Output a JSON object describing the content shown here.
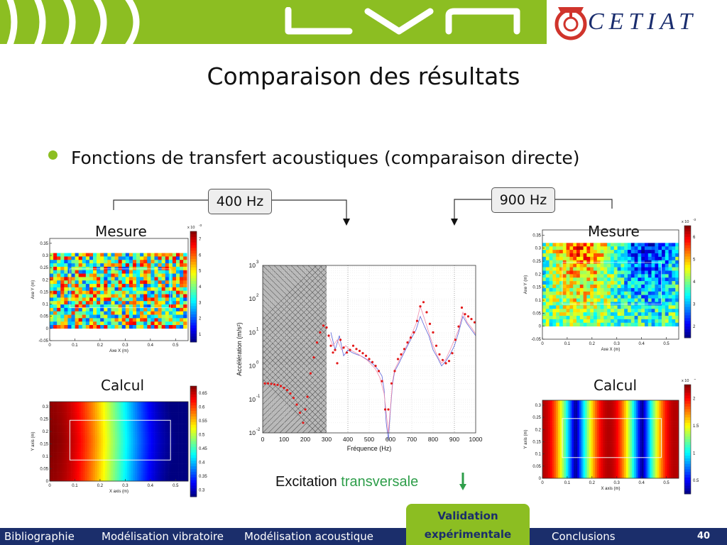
{
  "header": {
    "logo_text": "LVA",
    "partner": "CETIAT"
  },
  "slide": {
    "title": "Comparaison des résultats",
    "bullet": "Fonctions de transfert acoustiques (comparaison directe)",
    "tag_400": "400 Hz",
    "tag_900": "900 Hz",
    "caption_prefix": "Excitation ",
    "caption_highlight": "transversale"
  },
  "panels": {
    "left_measure_label": "Mesure",
    "left_calc_label": "Calcul",
    "right_measure_label": "Mesure",
    "right_calc_label": "Calcul"
  },
  "footer": {
    "items": [
      "Bibliographie",
      "Modélisation vibratoire",
      "Modélisation acoustique",
      "Validation expérimentale",
      "Conclusions"
    ],
    "active_line1": "Validation",
    "active_line2": "expérimentale",
    "page": "40"
  },
  "colors": {
    "brand_green": "#8cbe22",
    "brand_navy": "#1b2e6b",
    "cetiat_red": "#d0342c",
    "caption_green": "#2e9e4a"
  },
  "chart_data": [
    {
      "id": "left-measure",
      "type": "heatmap",
      "pattern": "noise",
      "xlabel": "Axe X (m)",
      "ylabel": "Axe Y (m)",
      "xticks": [
        "0",
        "0.1",
        "0.2",
        "0.3",
        "0.4",
        "0.5"
      ],
      "yticks": [
        "-0.05",
        "0",
        "0.05",
        "0.1",
        "0.15",
        "0.2",
        "0.25",
        "0.3",
        "0.35"
      ],
      "xlim": [
        0,
        0.55
      ],
      "ylim": [
        -0.05,
        0.37
      ],
      "colorbar_exponent": "x 10",
      "colorbar_exponent_sup": "-3",
      "colorbar_ticks": [
        "1",
        "2",
        "3",
        "4",
        "5",
        "6",
        "7"
      ]
    },
    {
      "id": "left-calcul",
      "type": "heatmap",
      "pattern": "cosine-400",
      "xlabel": "X axis (m)",
      "ylabel": "Y axis (m)",
      "xticks": [
        "0",
        "0.1",
        "0.2",
        "0.3",
        "0.4",
        "0.5"
      ],
      "yticks": [
        "0",
        "0.05",
        "0.1",
        "0.15",
        "0.2",
        "0.25",
        "0.3"
      ],
      "xlim": [
        0,
        0.55
      ],
      "ylim": [
        0,
        0.32
      ],
      "colorbar_exponent": "",
      "colorbar_exponent_sup": "",
      "colorbar_ticks": [
        "0.3",
        "0.35",
        "0.4",
        "0.45",
        "0.5",
        "0.55",
        "0.6",
        "0.65"
      ]
    },
    {
      "id": "right-measure",
      "type": "heatmap",
      "pattern": "noise-900",
      "xlabel": "Axe X (m)",
      "ylabel": "Axe Y (m)",
      "xticks": [
        "0",
        "0.1",
        "0.2",
        "0.3",
        "0.4",
        "0.5"
      ],
      "yticks": [
        "-0.05",
        "0",
        "0.05",
        "0.1",
        "0.15",
        "0.2",
        "0.25",
        "0.3",
        "0.35"
      ],
      "xlim": [
        0,
        0.55
      ],
      "ylim": [
        -0.05,
        0.37
      ],
      "colorbar_exponent": "x 10",
      "colorbar_exponent_sup": "-3",
      "colorbar_ticks": [
        "2",
        "3",
        "4",
        "5",
        "6"
      ]
    },
    {
      "id": "right-calcul",
      "type": "heatmap",
      "pattern": "cosine-900",
      "xlabel": "X axis (m)",
      "ylabel": "Y axis (m)",
      "xticks": [
        "0",
        "0.1",
        "0.2",
        "0.3",
        "0.4",
        "0.5"
      ],
      "yticks": [
        "0",
        "0.05",
        "0.1",
        "0.15",
        "0.2",
        "0.25",
        "0.3"
      ],
      "xlim": [
        0,
        0.55
      ],
      "ylim": [
        0,
        0.32
      ],
      "colorbar_exponent": "x 10",
      "colorbar_exponent_sup": "-3",
      "colorbar_ticks": [
        "0.5",
        "1",
        "1.5",
        "2"
      ]
    },
    {
      "id": "frf",
      "type": "line",
      "xlabel": "Fréquence (Hz)",
      "ylabel": "Accélération (m/s²)",
      "xlim": [
        0,
        1000
      ],
      "ylim_log10": [
        -2,
        3
      ],
      "yscale": "log",
      "xticks": [
        "0",
        "100",
        "200",
        "300",
        "400",
        "500",
        "600",
        "700",
        "800",
        "900",
        "1000"
      ],
      "yticks": [
        "10",
        "10",
        "10",
        "10",
        "10",
        "10"
      ],
      "ytick_exponents": [
        "-2",
        "-1",
        "0",
        "1",
        "2",
        "3"
      ],
      "grid": true,
      "shaded_region": [
        0,
        300
      ],
      "markers_at": [
        400,
        900
      ],
      "series": [
        {
          "style": "red-dots",
          "x": [
            10,
            25,
            40,
            55,
            70,
            85,
            100,
            115,
            130,
            145,
            160,
            175,
            190,
            200,
            210,
            225,
            240,
            255,
            270,
            285,
            300,
            310,
            320,
            330,
            340,
            350,
            365,
            380,
            395,
            410,
            425,
            440,
            455,
            470,
            485,
            500,
            515,
            530,
            545,
            560,
            575,
            590,
            605,
            620,
            635,
            650,
            665,
            680,
            695,
            710,
            725,
            740,
            755,
            770,
            785,
            800,
            815,
            830,
            845,
            860,
            875,
            890,
            905,
            920,
            935,
            950,
            965,
            980,
            995
          ],
          "y": [
            0.3,
            0.3,
            0.29,
            0.28,
            0.27,
            0.25,
            0.22,
            0.19,
            0.15,
            0.11,
            0.07,
            0.04,
            0.02,
            0.05,
            0.12,
            0.6,
            1.8,
            5,
            10,
            16,
            14,
            8,
            4,
            2.5,
            3,
            1.2,
            6,
            3.5,
            2.5,
            3,
            4,
            3.2,
            2.8,
            2.4,
            2,
            1.6,
            1.3,
            1,
            0.7,
            0.35,
            0.05,
            0.05,
            0.3,
            0.7,
            1.6,
            2.2,
            3.2,
            5,
            7,
            10,
            22,
            60,
            80,
            40,
            18,
            10,
            4,
            2.2,
            1.5,
            1.2,
            1.4,
            2.4,
            6,
            15,
            55,
            35,
            30,
            25,
            20
          ]
        },
        {
          "style": "blue-line",
          "x": [
            320,
            340,
            360,
            380,
            400,
            420,
            440,
            460,
            480,
            500,
            520,
            540,
            560,
            570,
            580,
            590,
            600,
            610,
            620,
            640,
            660,
            680,
            700,
            720,
            740,
            760,
            780,
            800,
            820,
            840,
            860,
            880,
            900,
            920,
            940,
            960,
            980,
            1000
          ],
          "y": [
            10,
            3,
            8,
            2,
            3,
            2.5,
            2.2,
            2,
            1.7,
            1.4,
            1.1,
            0.8,
            0.5,
            0.2,
            0.02,
            0.006,
            0.05,
            0.3,
            0.7,
            1.2,
            2.2,
            4,
            7,
            12,
            30,
            15,
            8,
            3,
            1.8,
            1,
            1.4,
            2.2,
            4,
            10,
            30,
            18,
            12,
            8
          ]
        },
        {
          "style": "pink-line",
          "x": [
            310,
            330,
            350,
            370,
            390,
            410,
            430,
            450,
            470,
            490,
            510,
            530,
            550,
            570,
            580,
            590,
            600,
            610,
            620,
            640,
            660,
            680,
            700,
            720,
            740,
            760,
            780,
            800,
            820,
            840,
            860,
            880,
            900,
            920,
            940,
            960,
            980,
            1000
          ],
          "y": [
            8,
            4,
            6,
            3,
            4,
            3,
            2.6,
            2.2,
            1.8,
            1.5,
            1.1,
            0.8,
            0.45,
            0.15,
            0.04,
            0.01,
            0.06,
            0.35,
            0.8,
            1.4,
            2.6,
            4.5,
            9,
            18,
            60,
            25,
            10,
            4,
            2,
            1.2,
            1.6,
            3,
            6,
            12,
            40,
            20,
            14,
            9
          ]
        }
      ]
    }
  ]
}
